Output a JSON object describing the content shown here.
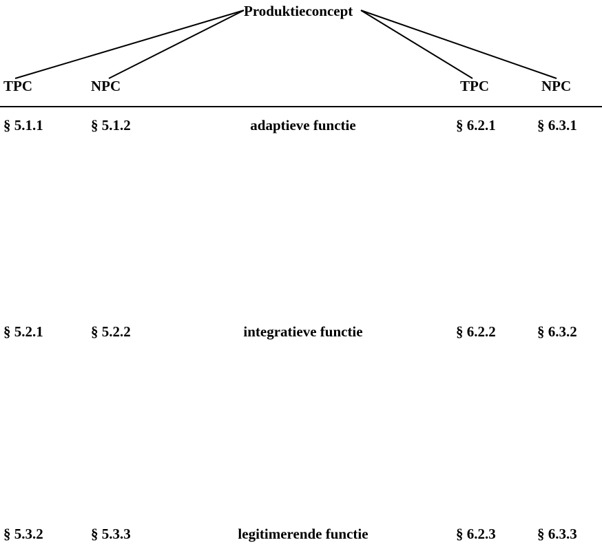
{
  "root": "Produktieconcept",
  "headers": {
    "left_tpc": "TPC",
    "left_npc": "NPC",
    "right_tpc": "TPC",
    "right_npc": "NPC"
  },
  "rows": [
    {
      "tpc_left": "§ 5.1.1",
      "npc_left": "§ 5.1.2",
      "function": "adaptieve functie",
      "tpc_right": "§ 6.2.1",
      "npc_right": "§ 6.3.1"
    },
    {
      "tpc_left": "§ 5.2.1",
      "npc_left": "§ 5.2.2",
      "function": "integratieve functie",
      "tpc_right": "§ 6.2.2",
      "npc_right": "§ 6.3.2"
    },
    {
      "tpc_left": "§ 5.3.2",
      "npc_left": "§ 5.3.3",
      "function": "legitimerende functie",
      "tpc_right": "§ 6.2.3",
      "npc_right": "§ 6.3.3"
    }
  ]
}
